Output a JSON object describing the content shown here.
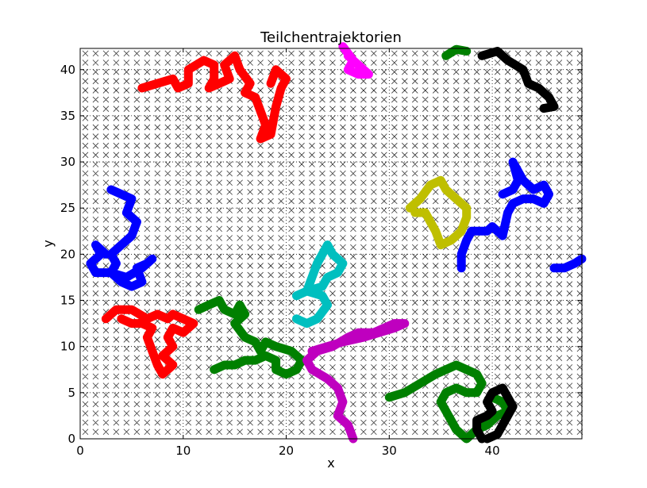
{
  "chart_data": {
    "type": "scatter",
    "title": "Teilchentrajektorien",
    "xlabel": "x",
    "ylabel": "y",
    "xlim": [
      0,
      48.7
    ],
    "ylim": [
      0,
      42.3
    ],
    "xticks": [
      0,
      10,
      20,
      30,
      40
    ],
    "yticks": [
      0,
      5,
      10,
      15,
      20,
      25,
      30,
      35,
      40
    ],
    "grid": true,
    "grid_style": "dotted",
    "lattice": {
      "marker": "x",
      "color": "#333333",
      "spacing": 1
    },
    "series": [
      {
        "color": "#ff0000",
        "points": [
          [
            6,
            38
          ],
          [
            7.5,
            38.5
          ],
          [
            9,
            39
          ],
          [
            9.5,
            38
          ],
          [
            10.5,
            38.5
          ],
          [
            10.5,
            40
          ],
          [
            12,
            41
          ],
          [
            13,
            40.5
          ],
          [
            13,
            39
          ],
          [
            12.5,
            38
          ],
          [
            13.5,
            38.5
          ],
          [
            14.5,
            39
          ],
          [
            14,
            40.5
          ],
          [
            15,
            41.5
          ],
          [
            15.5,
            40
          ],
          [
            16.5,
            38.5
          ],
          [
            16,
            37.5
          ],
          [
            17,
            37
          ],
          [
            17.5,
            35.5
          ],
          [
            18,
            34
          ],
          [
            17.5,
            32.5
          ],
          [
            18.5,
            33
          ],
          [
            19,
            36
          ],
          [
            19.5,
            38
          ],
          [
            20,
            39
          ],
          [
            19,
            40
          ],
          [
            18.5,
            38.5
          ]
        ]
      },
      {
        "color": "#ff00ff",
        "points": [
          [
            25.5,
            42.5
          ],
          [
            26.5,
            41
          ],
          [
            26,
            40
          ],
          [
            27,
            39.5
          ],
          [
            28,
            39.5
          ],
          [
            27,
            40.5
          ],
          [
            26,
            41.5
          ]
        ]
      },
      {
        "color": "#008000",
        "points": [
          [
            35.5,
            41.5
          ],
          [
            36.5,
            42.2
          ],
          [
            37.5,
            42
          ]
        ]
      },
      {
        "color": "#000000",
        "points": [
          [
            39,
            41.5
          ],
          [
            40.5,
            42
          ],
          [
            41.5,
            41
          ],
          [
            43,
            40
          ],
          [
            43.5,
            38.5
          ],
          [
            44.5,
            38
          ],
          [
            45.5,
            37
          ],
          [
            46,
            36
          ],
          [
            45,
            35.8
          ]
        ]
      },
      {
        "color": "#0000ff",
        "points": [
          [
            3,
            27
          ],
          [
            4,
            26.5
          ],
          [
            5,
            26
          ],
          [
            4.5,
            24.5
          ],
          [
            5.5,
            23.5
          ],
          [
            5,
            22
          ],
          [
            4,
            21
          ],
          [
            3,
            20
          ],
          [
            3.5,
            19
          ],
          [
            3,
            18
          ],
          [
            4,
            17
          ],
          [
            5,
            16.5
          ],
          [
            6,
            17
          ],
          [
            5.5,
            18.5
          ],
          [
            6.5,
            19
          ],
          [
            7,
            19.5
          ],
          [
            6,
            18.5
          ],
          [
            4.5,
            17.5
          ],
          [
            3,
            18
          ],
          [
            1.5,
            18
          ],
          [
            1,
            19
          ],
          [
            2,
            20
          ],
          [
            1.5,
            21
          ],
          [
            2.5,
            20
          ]
        ]
      },
      {
        "color": "#ff0000",
        "points": [
          [
            2.5,
            13
          ],
          [
            3.5,
            14
          ],
          [
            5,
            14
          ],
          [
            6.5,
            13
          ],
          [
            7.5,
            13.5
          ],
          [
            8.5,
            13
          ],
          [
            9,
            13.5
          ],
          [
            10,
            13
          ],
          [
            11,
            12.5
          ],
          [
            10,
            11.5
          ],
          [
            9,
            12
          ],
          [
            8.5,
            11
          ],
          [
            9,
            10
          ],
          [
            8,
            9
          ],
          [
            9,
            8
          ],
          [
            8,
            7
          ],
          [
            7.5,
            8
          ],
          [
            7,
            9.5
          ],
          [
            6.5,
            11
          ],
          [
            7,
            12
          ],
          [
            6,
            12.5
          ],
          [
            5,
            12.5
          ],
          [
            4,
            13
          ]
        ]
      },
      {
        "color": "#008000",
        "points": [
          [
            11.5,
            14
          ],
          [
            12.5,
            14.5
          ],
          [
            13.5,
            15
          ],
          [
            14,
            14
          ],
          [
            15,
            13.5
          ],
          [
            15.5,
            14.5
          ],
          [
            16,
            13.5
          ],
          [
            15,
            12.5
          ],
          [
            16,
            11
          ],
          [
            17,
            10.5
          ],
          [
            17.5,
            9.5
          ],
          [
            18,
            10.5
          ],
          [
            19,
            10
          ],
          [
            20.5,
            9.5
          ],
          [
            21.5,
            8.5
          ],
          [
            21,
            7.5
          ],
          [
            20,
            7
          ],
          [
            19,
            7.5
          ],
          [
            19,
            8.5
          ],
          [
            18,
            9
          ],
          [
            17,
            8.5
          ],
          [
            16,
            8.5
          ],
          [
            15,
            8
          ],
          [
            14,
            8
          ],
          [
            13,
            7.5
          ]
        ]
      },
      {
        "color": "#00bfbf",
        "points": [
          [
            21,
            13
          ],
          [
            22,
            12.5
          ],
          [
            23,
            13
          ],
          [
            24,
            14.5
          ],
          [
            23.5,
            15.5
          ],
          [
            22,
            16
          ],
          [
            22.5,
            17.5
          ],
          [
            23,
            19
          ],
          [
            23.5,
            20
          ],
          [
            24,
            21
          ],
          [
            24.5,
            20
          ],
          [
            25.5,
            19
          ],
          [
            25,
            18
          ],
          [
            24,
            17.5
          ],
          [
            23.5,
            16.5
          ],
          [
            22,
            16
          ],
          [
            21,
            15.5
          ]
        ]
      },
      {
        "color": "#bf00bf",
        "points": [
          [
            26.5,
            0
          ],
          [
            26,
            1.5
          ],
          [
            25,
            2.5
          ],
          [
            25.5,
            4
          ],
          [
            25,
            5.5
          ],
          [
            24,
            6.5
          ],
          [
            22.5,
            7.5
          ],
          [
            22,
            8.5
          ],
          [
            23,
            9.5
          ],
          [
            24.5,
            10
          ],
          [
            26,
            11
          ],
          [
            27,
            11.5
          ],
          [
            28.5,
            11.5
          ],
          [
            29.5,
            12
          ],
          [
            30.5,
            12.5
          ],
          [
            31.5,
            12.5
          ],
          [
            30.5,
            12
          ],
          [
            29,
            11.5
          ],
          [
            27.5,
            11
          ],
          [
            25.5,
            10.5
          ],
          [
            24,
            10
          ],
          [
            22.5,
            9.5
          ]
        ]
      },
      {
        "color": "#bfbf00",
        "points": [
          [
            32,
            25
          ],
          [
            33,
            26
          ],
          [
            34,
            27.5
          ],
          [
            35,
            28
          ],
          [
            35.5,
            27
          ],
          [
            36.5,
            26
          ],
          [
            37.5,
            25
          ],
          [
            37.5,
            24
          ],
          [
            37,
            22.5
          ],
          [
            36,
            21.5
          ],
          [
            35,
            21
          ],
          [
            34.5,
            22.5
          ],
          [
            34,
            23.5
          ],
          [
            33.5,
            24.5
          ],
          [
            32.5,
            24.5
          ]
        ]
      },
      {
        "color": "#0000ff",
        "points": [
          [
            37,
            18.5
          ],
          [
            37,
            20
          ],
          [
            37.5,
            21.5
          ],
          [
            38,
            22.5
          ],
          [
            39.5,
            22.5
          ],
          [
            40,
            23
          ],
          [
            41,
            22
          ],
          [
            41.5,
            24.5
          ],
          [
            42,
            25.5
          ],
          [
            43,
            26
          ],
          [
            44,
            26
          ],
          [
            45,
            25.5
          ],
          [
            45.5,
            26.5
          ],
          [
            45,
            27.5
          ],
          [
            44,
            27
          ],
          [
            43,
            28
          ],
          [
            42.5,
            29
          ],
          [
            42,
            30
          ],
          [
            42.5,
            28
          ],
          [
            42,
            27
          ],
          [
            41,
            26.5
          ]
        ]
      },
      {
        "color": "#0000ff",
        "points": [
          [
            46,
            18.5
          ],
          [
            47,
            18.5
          ],
          [
            48,
            19
          ],
          [
            48.7,
            19.5
          ]
        ]
      },
      {
        "color": "#008000",
        "points": [
          [
            30,
            4.5
          ],
          [
            31.5,
            5
          ],
          [
            33,
            6
          ],
          [
            34.5,
            7
          ],
          [
            35.5,
            7.5
          ],
          [
            36.5,
            8
          ],
          [
            37.5,
            7.5
          ],
          [
            38.5,
            7
          ],
          [
            39,
            6
          ],
          [
            38.5,
            5
          ],
          [
            37.5,
            5
          ],
          [
            36.5,
            5.5
          ],
          [
            35.5,
            5
          ],
          [
            35,
            4
          ],
          [
            35.5,
            3
          ],
          [
            36,
            2
          ],
          [
            36.5,
            1
          ],
          [
            37.5,
            0
          ],
          [
            38.5,
            1
          ],
          [
            39.5,
            1.5
          ],
          [
            40.5,
            2.5
          ],
          [
            41.5,
            3
          ],
          [
            41,
            4
          ],
          [
            40,
            4.5
          ]
        ]
      },
      {
        "color": "#000000",
        "points": [
          [
            39,
            0
          ],
          [
            38.5,
            1
          ],
          [
            38.5,
            2
          ],
          [
            39.5,
            2.5
          ],
          [
            40,
            3
          ],
          [
            39.5,
            4
          ],
          [
            40,
            5
          ],
          [
            41,
            5.5
          ],
          [
            41.5,
            4.5
          ],
          [
            42,
            3.5
          ],
          [
            41.5,
            2.5
          ],
          [
            41,
            1.5
          ],
          [
            40.5,
            0.5
          ],
          [
            39.5,
            0
          ]
        ]
      }
    ]
  }
}
